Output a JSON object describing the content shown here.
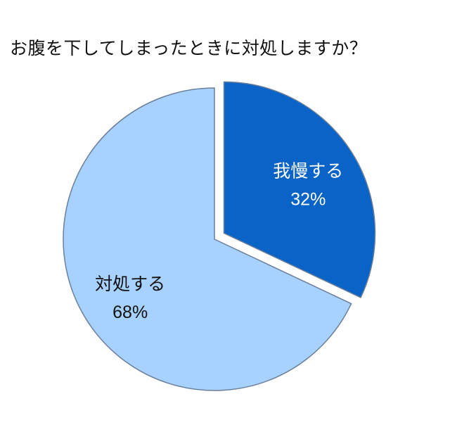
{
  "chart_data": {
    "type": "pie",
    "title": "お腹を下してしまったときに対処しますか？",
    "slices": [
      {
        "label": "我慢する",
        "value": 32,
        "pct_label": "32%",
        "color": "#0a63c6",
        "label_color": "#ffffff",
        "exploded": true
      },
      {
        "label": "対処する",
        "value": 68,
        "pct_label": "68%",
        "color": "#a7d1ff",
        "label_color": "#111111",
        "exploded": false
      }
    ],
    "start_angle_deg": 0,
    "direction": "clockwise",
    "edge_color": "#6a7f99",
    "legend": "none"
  }
}
